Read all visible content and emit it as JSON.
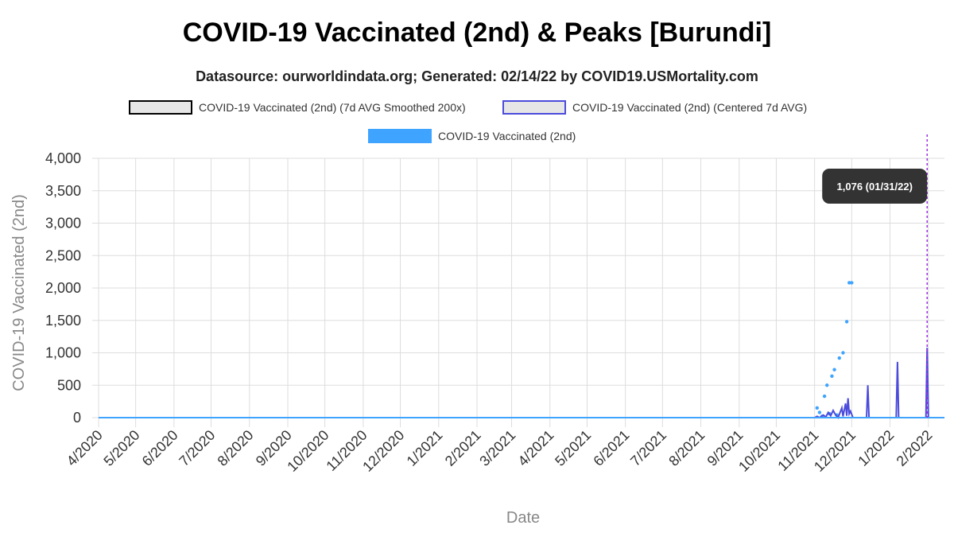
{
  "title": "COVID-19 Vaccinated (2nd) & Peaks [Burundi]",
  "subtitle": "Datasource: ourworldindata.org; Generated: 02/14/22 by COVID19.USMortality.com",
  "legend": [
    {
      "label": "COVID-19 Vaccinated (2nd) (7d AVG Smoothed 200x)",
      "color": "#e6e6e6",
      "border": "#000000"
    },
    {
      "label": "COVID-19 Vaccinated (2nd) (Centered 7d AVG)",
      "color": "#e6e6e6",
      "border": "#4b4bdc"
    },
    {
      "label": "COVID-19 Vaccinated (2nd)",
      "color": "#3ea4ff",
      "border": "#3ea4ff"
    }
  ],
  "tooltip": "1,076 (01/31/22)",
  "colors": {
    "points": "#3ea4ff",
    "avg_line": "#4b4bdc",
    "marker": "#9b30e0",
    "grid": "#dddddd",
    "axis_text": "#333333",
    "axis_label": "#888888"
  },
  "chart_data": {
    "type": "line",
    "title": "COVID-19 Vaccinated (2nd) & Peaks [Burundi]",
    "xlabel": "Date",
    "ylabel": "COVID-19 Vaccinated (2nd)",
    "ylim": [
      0,
      4000
    ],
    "xlim": [
      "2020-04-01",
      "2022-02-14"
    ],
    "yticks": [
      0,
      500,
      1000,
      1500,
      2000,
      2500,
      3000,
      3500,
      4000
    ],
    "ytick_labels": [
      "0",
      "500",
      "1,000",
      "1,500",
      "2,000",
      "2,500",
      "3,000",
      "3,500",
      "4,000"
    ],
    "xticks": [
      "2020-04-01",
      "2020-05-01",
      "2020-06-01",
      "2020-07-01",
      "2020-08-01",
      "2020-09-01",
      "2020-10-01",
      "2020-11-01",
      "2020-12-01",
      "2021-01-01",
      "2021-02-01",
      "2021-03-01",
      "2021-04-01",
      "2021-05-01",
      "2021-06-01",
      "2021-07-01",
      "2021-08-01",
      "2021-09-01",
      "2021-10-01",
      "2021-11-01",
      "2021-12-01",
      "2022-01-01",
      "2022-02-01"
    ],
    "xtick_labels": [
      "4/2020",
      "5/2020",
      "6/2020",
      "7/2020",
      "8/2020",
      "9/2020",
      "10/2020",
      "11/2020",
      "12/2020",
      "1/2021",
      "2/2021",
      "3/2021",
      "4/2021",
      "5/2021",
      "6/2021",
      "7/2021",
      "8/2021",
      "9/2021",
      "10/2021",
      "11/2021",
      "12/2021",
      "1/2022",
      "2/2022"
    ],
    "grid": true,
    "legend_position": "top",
    "marker_date": "2022-01-31",
    "series": [
      {
        "name": "COVID-19 Vaccinated (2nd)",
        "style": "points",
        "points": [
          [
            "2021-11-03",
            150
          ],
          [
            "2021-11-05",
            80
          ],
          [
            "2021-11-07",
            20
          ],
          [
            "2021-11-09",
            330
          ],
          [
            "2021-11-11",
            500
          ],
          [
            "2021-11-13",
            60
          ],
          [
            "2021-11-15",
            640
          ],
          [
            "2021-11-17",
            740
          ],
          [
            "2021-11-19",
            40
          ],
          [
            "2021-11-21",
            920
          ],
          [
            "2021-11-24",
            1000
          ],
          [
            "2021-11-27",
            1480
          ],
          [
            "2021-11-29",
            2080
          ],
          [
            "2021-12-01",
            2080
          ]
        ]
      },
      {
        "name": "COVID-19 Vaccinated (2nd) (Centered 7d AVG)",
        "style": "line",
        "points": [
          [
            "2020-04-01",
            0
          ],
          [
            "2021-11-01",
            0
          ],
          [
            "2021-11-03",
            20
          ],
          [
            "2021-11-05",
            0
          ],
          [
            "2021-11-08",
            40
          ],
          [
            "2021-11-10",
            10
          ],
          [
            "2021-11-12",
            80
          ],
          [
            "2021-11-14",
            30
          ],
          [
            "2021-11-16",
            110
          ],
          [
            "2021-11-18",
            40
          ],
          [
            "2021-11-20",
            0
          ],
          [
            "2021-11-23",
            150
          ],
          [
            "2021-11-24",
            20
          ],
          [
            "2021-11-26",
            220
          ],
          [
            "2021-11-27",
            30
          ],
          [
            "2021-11-28",
            300
          ],
          [
            "2021-11-29",
            60
          ],
          [
            "2021-11-30",
            100
          ],
          [
            "2021-12-02",
            0
          ],
          [
            "2021-12-13",
            0
          ],
          [
            "2021-12-14",
            500
          ],
          [
            "2021-12-15",
            0
          ],
          [
            "2022-01-06",
            0
          ],
          [
            "2022-01-07",
            860
          ],
          [
            "2022-01-08",
            0
          ],
          [
            "2022-01-30",
            0
          ],
          [
            "2022-01-31",
            1076
          ],
          [
            "2022-02-01",
            0
          ],
          [
            "2022-02-14",
            0
          ]
        ]
      },
      {
        "name": "COVID-19 Vaccinated (2nd) (7d AVG Smoothed 200x)",
        "style": "line",
        "points": [
          [
            "2020-04-01",
            0
          ],
          [
            "2022-02-14",
            0
          ]
        ]
      }
    ]
  }
}
